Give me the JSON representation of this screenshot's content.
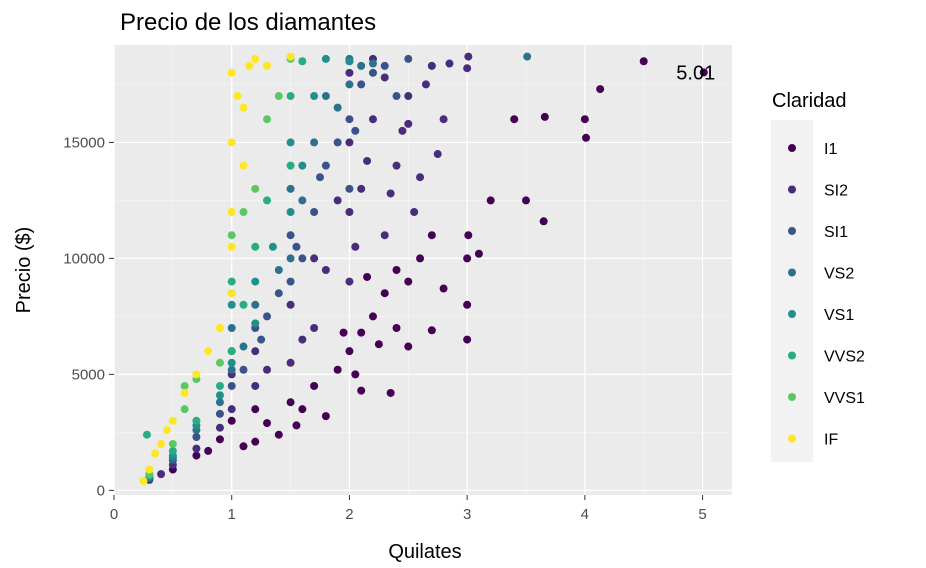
{
  "chart_data": {
    "type": "scatter",
    "title": "Precio de los diamantes",
    "xlabel": "Quilates",
    "ylabel": "Precio ($)",
    "xlim": [
      0,
      5.25
    ],
    "ylim": [
      -200,
      19200
    ],
    "x_ticks": [
      0,
      1,
      2,
      3,
      4,
      5
    ],
    "y_ticks": [
      0,
      5000,
      10000,
      15000
    ],
    "grid": true,
    "legend": {
      "title": "Claridad",
      "position": "right",
      "entries": [
        {
          "label": "I1",
          "color": "#440154"
        },
        {
          "label": "SI2",
          "color": "#472D7B"
        },
        {
          "label": "SI1",
          "color": "#3B528B"
        },
        {
          "label": "VS2",
          "color": "#2C728E"
        },
        {
          "label": "VS1",
          "color": "#21908C"
        },
        {
          "label": "VVS2",
          "color": "#27AD81"
        },
        {
          "label": "VVS1",
          "color": "#5DC863"
        },
        {
          "label": "IF",
          "color": "#FDE725"
        }
      ]
    },
    "annotation": {
      "text": "5.01",
      "x": 5.01,
      "y": 18018
    },
    "series": [
      {
        "name": "I1",
        "color": "#440154",
        "points": [
          [
            0.3,
            500
          ],
          [
            0.5,
            900
          ],
          [
            0.7,
            1500
          ],
          [
            0.9,
            2200
          ],
          [
            1.0,
            3000
          ],
          [
            1.2,
            3500
          ],
          [
            1.5,
            3800
          ],
          [
            1.7,
            4500
          ],
          [
            1.9,
            5200
          ],
          [
            2.0,
            6000
          ],
          [
            2.1,
            6800
          ],
          [
            2.2,
            7500
          ],
          [
            2.3,
            8500
          ],
          [
            2.4,
            9500
          ],
          [
            2.5,
            9000
          ],
          [
            2.6,
            10000
          ],
          [
            2.7,
            11000
          ],
          [
            2.8,
            8700
          ],
          [
            3.0,
            8000
          ],
          [
            3.0,
            6500
          ],
          [
            3.0,
            10000
          ],
          [
            3.01,
            11000
          ],
          [
            3.1,
            10200
          ],
          [
            3.2,
            12500
          ],
          [
            3.4,
            16000
          ],
          [
            3.5,
            12500
          ],
          [
            3.65,
            11600
          ],
          [
            3.66,
            16100
          ],
          [
            4.0,
            16000
          ],
          [
            4.01,
            15200
          ],
          [
            4.13,
            17300
          ],
          [
            4.5,
            18500
          ],
          [
            5.01,
            18018
          ],
          [
            1.55,
            2800
          ],
          [
            1.4,
            2400
          ],
          [
            1.8,
            3200
          ],
          [
            2.05,
            5000
          ],
          [
            2.25,
            6300
          ],
          [
            2.4,
            7000
          ],
          [
            2.5,
            6200
          ],
          [
            2.7,
            6900
          ],
          [
            2.1,
            4300
          ],
          [
            1.6,
            3500
          ],
          [
            1.2,
            2100
          ],
          [
            0.8,
            1700
          ],
          [
            1.1,
            1900
          ],
          [
            1.3,
            2900
          ],
          [
            2.35,
            4200
          ],
          [
            1.95,
            6800
          ],
          [
            2.15,
            9200
          ]
        ]
      },
      {
        "name": "SI2",
        "color": "#472D7B",
        "points": [
          [
            0.3,
            450
          ],
          [
            0.4,
            700
          ],
          [
            0.5,
            1100
          ],
          [
            0.7,
            1800
          ],
          [
            0.9,
            2700
          ],
          [
            1.0,
            3500
          ],
          [
            1.0,
            5000
          ],
          [
            1.2,
            4500
          ],
          [
            1.2,
            6000
          ],
          [
            1.5,
            5500
          ],
          [
            1.5,
            8000
          ],
          [
            1.7,
            7000
          ],
          [
            1.7,
            10000
          ],
          [
            2.0,
            9000
          ],
          [
            2.0,
            12000
          ],
          [
            2.0,
            15000
          ],
          [
            2.0,
            18000
          ],
          [
            2.1,
            13000
          ],
          [
            2.2,
            16000
          ],
          [
            2.3,
            11000
          ],
          [
            2.4,
            14000
          ],
          [
            2.5,
            17000
          ],
          [
            2.6,
            13500
          ],
          [
            2.7,
            18300
          ],
          [
            2.8,
            16000
          ],
          [
            3.0,
            18200
          ],
          [
            3.01,
            18700
          ],
          [
            2.55,
            12000
          ],
          [
            2.75,
            14500
          ],
          [
            2.2,
            18600
          ],
          [
            1.8,
            9500
          ],
          [
            1.9,
            12500
          ],
          [
            2.05,
            10500
          ],
          [
            2.45,
            15500
          ],
          [
            2.65,
            17500
          ],
          [
            2.35,
            12800
          ],
          [
            1.3,
            5200
          ],
          [
            1.6,
            6500
          ],
          [
            2.15,
            14200
          ],
          [
            2.3,
            17800
          ],
          [
            2.5,
            15800
          ],
          [
            2.85,
            18400
          ]
        ]
      },
      {
        "name": "SI1",
        "color": "#3B528B",
        "points": [
          [
            0.3,
            500
          ],
          [
            0.5,
            1300
          ],
          [
            0.7,
            2300
          ],
          [
            0.9,
            3300
          ],
          [
            1.0,
            4500
          ],
          [
            1.0,
            6000
          ],
          [
            1.1,
            5200
          ],
          [
            1.2,
            7000
          ],
          [
            1.3,
            7500
          ],
          [
            1.5,
            9000
          ],
          [
            1.5,
            11000
          ],
          [
            1.6,
            10000
          ],
          [
            1.7,
            12000
          ],
          [
            1.8,
            14000
          ],
          [
            2.0,
            13000
          ],
          [
            2.0,
            16000
          ],
          [
            2.0,
            18500
          ],
          [
            2.1,
            17500
          ],
          [
            2.2,
            18000
          ],
          [
            2.3,
            18300
          ],
          [
            2.5,
            18600
          ],
          [
            1.9,
            15000
          ],
          [
            1.4,
            8500
          ],
          [
            1.75,
            13500
          ],
          [
            2.05,
            15500
          ],
          [
            2.4,
            17000
          ],
          [
            1.25,
            6500
          ],
          [
            1.55,
            10500
          ]
        ]
      },
      {
        "name": "VS2",
        "color": "#2C728E",
        "points": [
          [
            0.3,
            550
          ],
          [
            0.5,
            1400
          ],
          [
            0.7,
            2600
          ],
          [
            0.9,
            3800
          ],
          [
            1.0,
            5200
          ],
          [
            1.0,
            7000
          ],
          [
            1.2,
            8000
          ],
          [
            1.5,
            10000
          ],
          [
            1.5,
            13000
          ],
          [
            1.7,
            15000
          ],
          [
            1.8,
            17000
          ],
          [
            2.0,
            17500
          ],
          [
            2.0,
            18600
          ],
          [
            2.2,
            18400
          ],
          [
            3.51,
            18700
          ],
          [
            1.4,
            9500
          ],
          [
            1.6,
            12500
          ],
          [
            1.9,
            16500
          ],
          [
            2.1,
            18300
          ],
          [
            1.1,
            6200
          ]
        ]
      },
      {
        "name": "VS1",
        "color": "#21908C",
        "points": [
          [
            0.3,
            600
          ],
          [
            0.5,
            1500
          ],
          [
            0.7,
            2800
          ],
          [
            0.9,
            4100
          ],
          [
            1.0,
            5500
          ],
          [
            1.0,
            8000
          ],
          [
            1.2,
            9000
          ],
          [
            1.5,
            12000
          ],
          [
            1.5,
            15000
          ],
          [
            1.7,
            17000
          ],
          [
            1.8,
            18600
          ],
          [
            2.0,
            18500
          ],
          [
            1.35,
            10500
          ],
          [
            1.6,
            14000
          ],
          [
            1.2,
            7200
          ]
        ]
      },
      {
        "name": "VVS2",
        "color": "#27AD81",
        "points": [
          [
            0.3,
            650
          ],
          [
            0.5,
            1700
          ],
          [
            0.7,
            3000
          ],
          [
            0.9,
            4500
          ],
          [
            1.0,
            6000
          ],
          [
            1.0,
            9000
          ],
          [
            1.2,
            10500
          ],
          [
            1.5,
            14000
          ],
          [
            1.5,
            17000
          ],
          [
            1.6,
            18500
          ],
          [
            0.28,
            2400
          ],
          [
            1.3,
            12500
          ],
          [
            1.1,
            8000
          ]
        ]
      },
      {
        "name": "VVS1",
        "color": "#5DC863",
        "points": [
          [
            0.3,
            700
          ],
          [
            0.5,
            2000
          ],
          [
            0.6,
            3500
          ],
          [
            0.7,
            4800
          ],
          [
            0.9,
            5500
          ],
          [
            1.0,
            8500
          ],
          [
            1.0,
            11000
          ],
          [
            1.2,
            13000
          ],
          [
            1.3,
            16000
          ],
          [
            1.5,
            18600
          ],
          [
            0.6,
            4500
          ],
          [
            1.1,
            12000
          ],
          [
            1.4,
            17000
          ]
        ]
      },
      {
        "name": "IF",
        "color": "#FDE725",
        "points": [
          [
            0.25,
            400
          ],
          [
            0.3,
            900
          ],
          [
            0.4,
            2000
          ],
          [
            0.5,
            3000
          ],
          [
            0.6,
            4200
          ],
          [
            0.7,
            5000
          ],
          [
            0.8,
            6000
          ],
          [
            0.9,
            7000
          ],
          [
            1.0,
            8500
          ],
          [
            1.0,
            12000
          ],
          [
            1.0,
            15000
          ],
          [
            1.05,
            17000
          ],
          [
            1.0,
            18000
          ],
          [
            1.1,
            16500
          ],
          [
            1.2,
            18600
          ],
          [
            1.3,
            18300
          ],
          [
            1.5,
            18700
          ],
          [
            0.35,
            1600
          ],
          [
            0.45,
            2600
          ],
          [
            1.1,
            14000
          ],
          [
            1.0,
            10500
          ],
          [
            1.15,
            18300
          ]
        ]
      }
    ]
  }
}
